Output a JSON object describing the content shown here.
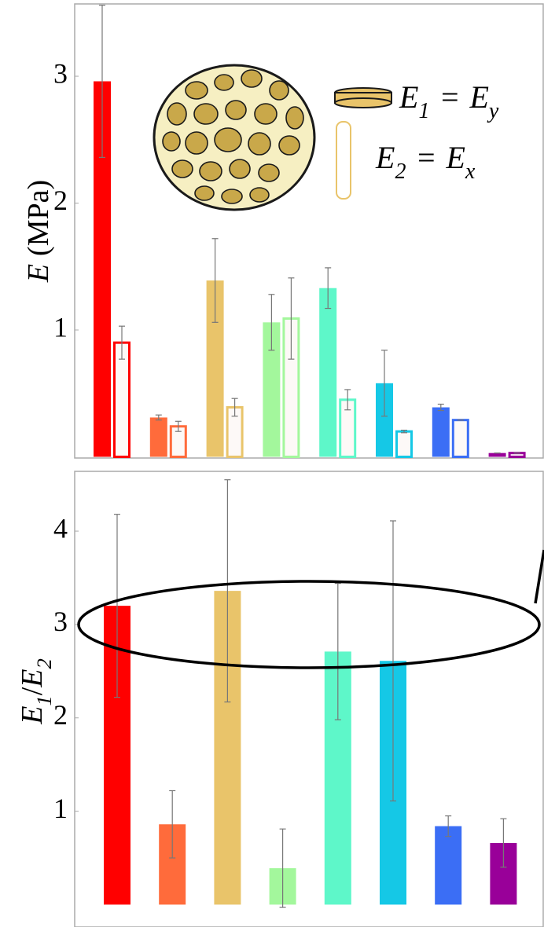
{
  "chart_data": [
    {
      "type": "bar",
      "ylabel": [
        "E",
        "(MPa)"
      ],
      "annotations": [
        [
          "E",
          "1",
          "=",
          "E",
          "y"
        ],
        [
          "E",
          "2",
          "=",
          "E",
          "x"
        ]
      ],
      "categories": [
        null,
        null,
        null,
        null,
        null,
        null,
        null,
        null
      ],
      "colors": [
        "#ff0000",
        "#ff6b3b",
        "#e9c46a",
        "#a3f79c",
        "#5ef7c9",
        "#15c8e6",
        "#3b6ef5",
        "#990099"
      ],
      "series": [
        {
          "style": "filled",
          "values": [
            2.96,
            0.31,
            1.39,
            1.06,
            1.33,
            0.58,
            0.39,
            0.03
          ],
          "errors": [
            0.6,
            0.02,
            0.33,
            0.22,
            0.16,
            0.26,
            0.025,
            0.0
          ]
        },
        {
          "style": "hollow",
          "values": [
            0.9,
            0.24,
            0.39,
            1.09,
            0.45,
            0.2,
            0.29,
            0.03
          ],
          "errors": [
            0.13,
            0.04,
            0.07,
            0.32,
            0.08,
            0.01,
            0.0,
            0.0
          ]
        }
      ],
      "ylim": [
        0,
        3.57
      ],
      "yticks": [
        1,
        2,
        3
      ],
      "grid": false
    },
    {
      "type": "bar",
      "ylabel": [
        "E",
        "1",
        "/",
        "E",
        "2"
      ],
      "categories": [
        null,
        null,
        null,
        null,
        null,
        null,
        null,
        null
      ],
      "colors": [
        "#ff0000",
        "#ff6b3b",
        "#e9c46a",
        "#a3f79c",
        "#5ef7c9",
        "#15c8e6",
        "#3b6ef5",
        "#990099"
      ],
      "series": [
        {
          "style": "filled",
          "values": [
            3.2,
            0.86,
            3.36,
            0.39,
            2.71,
            2.61,
            0.84,
            0.66
          ],
          "errors": [
            0.98,
            0.36,
            1.19,
            0.42,
            0.73,
            1.5,
            0.11,
            0.26
          ]
        }
      ],
      "ylim": [
        -0.24,
        4.64
      ],
      "yticks": [
        1,
        2,
        3,
        4
      ],
      "grid": false
    }
  ]
}
